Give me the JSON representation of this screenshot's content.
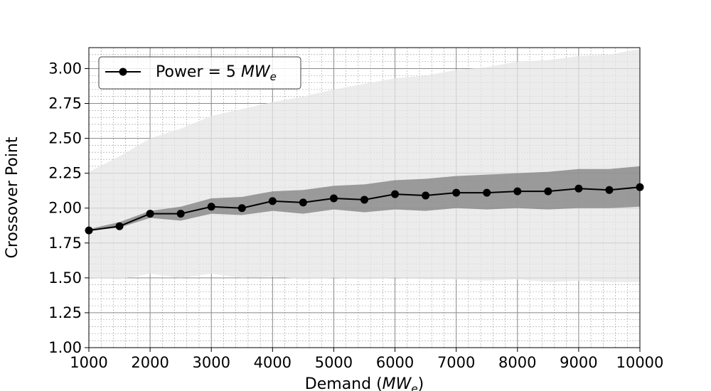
{
  "chart_data": {
    "type": "line",
    "xlabel": "Demand",
    "xlabel_unit_main": "MW",
    "xlabel_unit_sub": "e",
    "ylabel": "Crossover Point",
    "xlim": [
      1000,
      10000
    ],
    "ylim": [
      1.0,
      3.15
    ],
    "x_ticks": [
      1000,
      2000,
      3000,
      4000,
      5000,
      6000,
      7000,
      8000,
      9000,
      10000
    ],
    "y_ticks": [
      "1.00",
      "1.25",
      "1.50",
      "1.75",
      "2.00",
      "2.25",
      "2.50",
      "2.75",
      "3.00"
    ],
    "grid": true,
    "legend_position": "top-left",
    "x": [
      1000,
      1500,
      2000,
      2500,
      3000,
      3500,
      4000,
      4500,
      5000,
      5500,
      6000,
      6500,
      7000,
      7500,
      8000,
      8500,
      9000,
      9500,
      10000
    ],
    "series": [
      {
        "name_prefix": "Power = 5 ",
        "name_unit_main": "MW",
        "name_unit_sub": "e",
        "values": [
          1.84,
          1.87,
          1.96,
          1.96,
          2.01,
          2.0,
          2.05,
          2.04,
          2.07,
          2.06,
          2.1,
          2.09,
          2.11,
          2.11,
          2.12,
          2.12,
          2.14,
          2.13,
          2.15
        ],
        "color": "#000000"
      }
    ],
    "inner_band": {
      "lower": [
        1.84,
        1.86,
        1.93,
        1.91,
        1.96,
        1.95,
        1.98,
        1.96,
        1.99,
        1.97,
        1.99,
        1.98,
        2.0,
        1.99,
        2.0,
        1.99,
        2.0,
        2.0,
        2.01
      ],
      "upper": [
        1.85,
        1.9,
        1.98,
        2.01,
        2.07,
        2.08,
        2.12,
        2.13,
        2.16,
        2.17,
        2.2,
        2.21,
        2.23,
        2.24,
        2.25,
        2.26,
        2.28,
        2.28,
        2.3
      ],
      "color": "#7f7f7f"
    },
    "outer_band": {
      "lower": [
        1.5,
        1.49,
        1.53,
        1.5,
        1.53,
        1.5,
        1.51,
        1.49,
        1.5,
        1.49,
        1.5,
        1.49,
        1.49,
        1.48,
        1.49,
        1.47,
        1.48,
        1.47,
        1.47
      ],
      "upper": [
        2.26,
        2.37,
        2.5,
        2.57,
        2.66,
        2.71,
        2.76,
        2.8,
        2.85,
        2.89,
        2.93,
        2.95,
        2.99,
        3.01,
        3.05,
        3.06,
        3.09,
        3.1,
        3.14
      ],
      "color": "#e6e6e6"
    }
  }
}
